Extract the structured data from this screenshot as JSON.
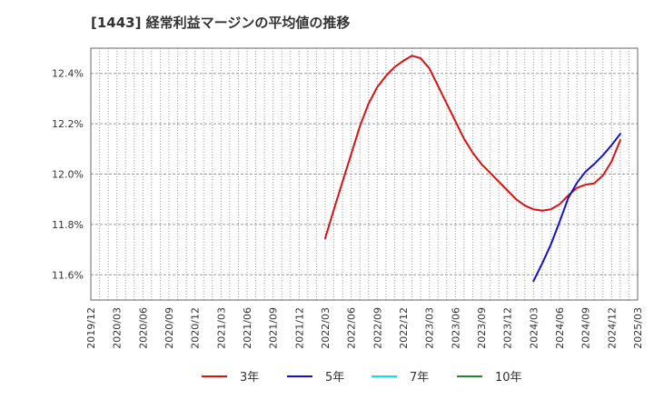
{
  "chart_data": {
    "type": "line",
    "title": "[1443]  経常利益マージンの平均値の推移",
    "xlabel": "",
    "ylabel": "",
    "ylim": [
      11.5,
      12.5
    ],
    "y_ticks": [
      11.6,
      11.8,
      12.0,
      12.2,
      12.4
    ],
    "y_tick_labels": [
      "11.6%",
      "11.8%",
      "12.0%",
      "12.2%",
      "12.4%"
    ],
    "x_tick_labels": [
      "2019/12",
      "2020/03",
      "2020/06",
      "2020/09",
      "2020/12",
      "2021/03",
      "2021/06",
      "2021/09",
      "2021/12",
      "2022/03",
      "2022/06",
      "2022/09",
      "2022/12",
      "2023/03",
      "2023/06",
      "2023/09",
      "2023/12",
      "2024/03",
      "2024/06",
      "2024/09",
      "2024/12",
      "2025/03"
    ],
    "grid": true,
    "legend_position": "bottom",
    "series": [
      {
        "name": "3年",
        "color": "#dd1111",
        "values": [
          [
            27,
            11.745
          ],
          [
            28,
            11.86
          ],
          [
            29,
            11.97
          ],
          [
            30,
            12.08
          ],
          [
            31,
            12.19
          ],
          [
            32,
            12.28
          ],
          [
            33,
            12.345
          ],
          [
            34,
            12.39
          ],
          [
            35,
            12.425
          ],
          [
            36,
            12.45
          ],
          [
            37,
            12.47
          ],
          [
            38,
            12.46
          ],
          [
            39,
            12.42
          ],
          [
            40,
            12.35
          ],
          [
            41,
            12.28
          ],
          [
            42,
            12.21
          ],
          [
            43,
            12.14
          ],
          [
            44,
            12.085
          ],
          [
            45,
            12.04
          ],
          [
            46,
            12.005
          ],
          [
            47,
            11.97
          ],
          [
            48,
            11.935
          ],
          [
            49,
            11.9
          ],
          [
            50,
            11.875
          ],
          [
            51,
            11.86
          ],
          [
            52,
            11.855
          ],
          [
            53,
            11.86
          ],
          [
            54,
            11.88
          ],
          [
            55,
            11.915
          ],
          [
            56,
            11.945
          ],
          [
            57,
            11.958
          ],
          [
            58,
            11.963
          ],
          [
            59,
            11.995
          ],
          [
            60,
            12.05
          ],
          [
            61,
            12.135
          ]
        ]
      },
      {
        "name": "5年",
        "color": "#1111cc",
        "values": [
          [
            51,
            11.575
          ],
          [
            52,
            11.645
          ],
          [
            53,
            11.72
          ],
          [
            54,
            11.81
          ],
          [
            55,
            11.905
          ],
          [
            56,
            11.965
          ],
          [
            57,
            12.01
          ],
          [
            58,
            12.04
          ],
          [
            59,
            12.075
          ],
          [
            60,
            12.115
          ],
          [
            61,
            12.16
          ]
        ]
      },
      {
        "name": "7年",
        "color": "#00e5ee",
        "values": []
      },
      {
        "name": "10年",
        "color": "#228822",
        "values": []
      }
    ]
  }
}
